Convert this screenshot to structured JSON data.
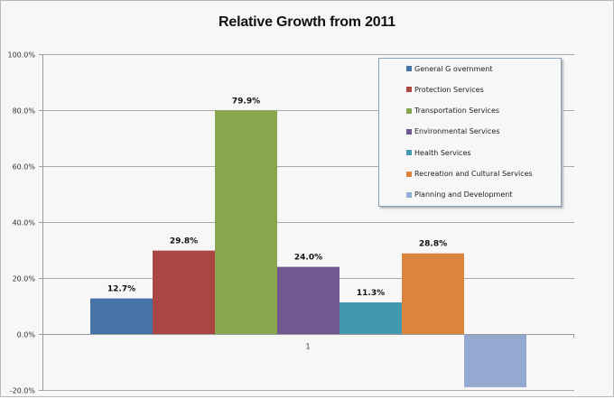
{
  "chart_data": {
    "type": "bar",
    "title": "Relative Growth from 2011",
    "xlabel": "",
    "ylabel": "",
    "categories": [
      "1"
    ],
    "ylim": [
      -20,
      100
    ],
    "yticks": [
      100,
      80,
      60,
      40,
      20,
      0,
      -20
    ],
    "ytick_labels": [
      "100.0%",
      "80.0%",
      "60.0%",
      "40.0%",
      "20.0%",
      "0.0%",
      "-20.0%"
    ],
    "grid": true,
    "legend_position": "top-right",
    "series": [
      {
        "name": "General G overnment",
        "values": [
          12.7
        ],
        "label": "12.7%",
        "color": "#4572a7"
      },
      {
        "name": "Protection Services",
        "values": [
          29.8
        ],
        "label": "29.8%",
        "color": "#aa4643"
      },
      {
        "name": "Transportation Services",
        "values": [
          79.9
        ],
        "label": "79.9%",
        "color": "#89a54e"
      },
      {
        "name": "Environmental Services",
        "values": [
          24.0
        ],
        "label": "24.0%",
        "color": "#71588f"
      },
      {
        "name": "Health Services",
        "values": [
          11.3
        ],
        "label": "11.3%",
        "color": "#4198af"
      },
      {
        "name": "Recreation and Cultural Services",
        "values": [
          28.8
        ],
        "label": "28.8%",
        "color": "#db843d"
      },
      {
        "name": "Planning and Development",
        "values": [
          -19.0
        ],
        "label": null,
        "color": "#93a9cf"
      }
    ]
  }
}
